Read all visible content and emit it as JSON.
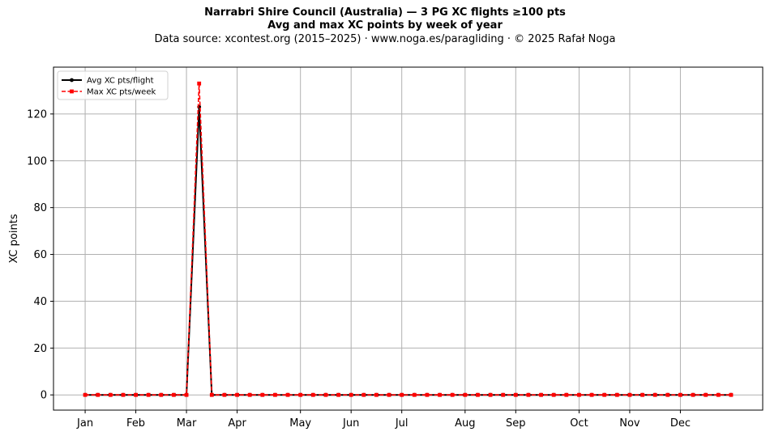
{
  "header": {
    "title": "Narrabri Shire Council (Australia)  —  3 PG XC flights ≥100 pts",
    "subtitle": "Avg and max XC points by week of year",
    "source": "Data source: xcontest.org (2015–2025)  ·  www.noga.es/paragliding  ·  © 2025 Rafał Noga"
  },
  "chart_data": {
    "type": "line",
    "title": "Narrabri Shire Council (Australia)  —  3 PG XC flights ≥100 pts",
    "subtitle": "Avg and max XC points by week of year",
    "xlabel": "",
    "ylabel": "XC points",
    "x": [
      1,
      2,
      3,
      4,
      5,
      6,
      7,
      8,
      9,
      10,
      11,
      12,
      13,
      14,
      15,
      16,
      17,
      18,
      19,
      20,
      21,
      22,
      23,
      24,
      25,
      26,
      27,
      28,
      29,
      30,
      31,
      32,
      33,
      34,
      35,
      36,
      37,
      38,
      39,
      40,
      41,
      42,
      43,
      44,
      45,
      46,
      47,
      48,
      49,
      50,
      51,
      52
    ],
    "xlim": [
      -1.5,
      54.5
    ],
    "ylim": [
      -6.5,
      140
    ],
    "yticks": [
      0,
      20,
      40,
      60,
      80,
      100,
      120
    ],
    "xticks": [
      {
        "x": 1,
        "label": "Jan"
      },
      {
        "x": 5,
        "label": "Feb"
      },
      {
        "x": 9,
        "label": "Mar"
      },
      {
        "x": 13,
        "label": "Apr"
      },
      {
        "x": 18,
        "label": "May"
      },
      {
        "x": 22,
        "label": "Jun"
      },
      {
        "x": 26,
        "label": "Jul"
      },
      {
        "x": 31,
        "label": "Aug"
      },
      {
        "x": 35,
        "label": "Sep"
      },
      {
        "x": 40,
        "label": "Oct"
      },
      {
        "x": 44,
        "label": "Nov"
      },
      {
        "x": 48,
        "label": "Dec"
      }
    ],
    "grid": true,
    "legend": "upper left",
    "series": [
      {
        "name": "Avg XC pts/flight",
        "color": "#000000",
        "style": "solid",
        "marker": "circle",
        "values": [
          0,
          0,
          0,
          0,
          0,
          0,
          0,
          0,
          0,
          123,
          0,
          0,
          0,
          0,
          0,
          0,
          0,
          0,
          0,
          0,
          0,
          0,
          0,
          0,
          0,
          0,
          0,
          0,
          0,
          0,
          0,
          0,
          0,
          0,
          0,
          0,
          0,
          0,
          0,
          0,
          0,
          0,
          0,
          0,
          0,
          0,
          0,
          0,
          0,
          0,
          0,
          0
        ]
      },
      {
        "name": "Max XC pts/week",
        "color": "#ff0000",
        "style": "dashed",
        "marker": "square",
        "values": [
          0,
          0,
          0,
          0,
          0,
          0,
          0,
          0,
          0,
          133,
          0,
          0,
          0,
          0,
          0,
          0,
          0,
          0,
          0,
          0,
          0,
          0,
          0,
          0,
          0,
          0,
          0,
          0,
          0,
          0,
          0,
          0,
          0,
          0,
          0,
          0,
          0,
          0,
          0,
          0,
          0,
          0,
          0,
          0,
          0,
          0,
          0,
          0,
          0,
          0,
          0,
          0
        ]
      }
    ]
  }
}
